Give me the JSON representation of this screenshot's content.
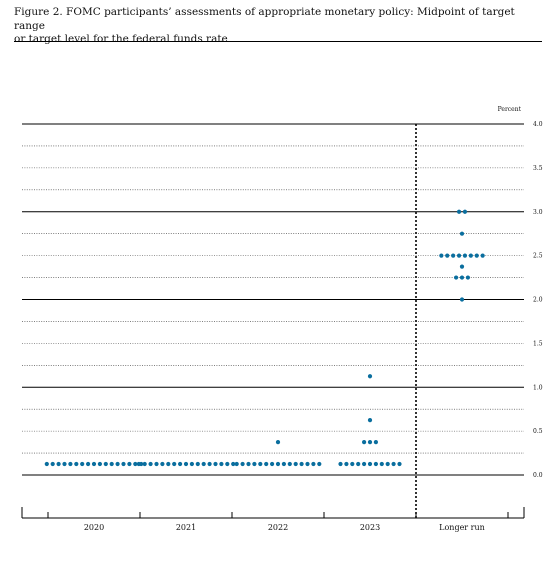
{
  "figure": {
    "caption_line1": "Figure 2.  FOMC participants’ assessments of appropriate monetary policy:  Midpoint of target range",
    "caption_line2": "or target level for the federal funds rate"
  },
  "chart_data": {
    "type": "scatter",
    "title": "",
    "ylabel": "Percent",
    "xlabel": "",
    "ylim": [
      0,
      4
    ],
    "yticks": [
      0.0,
      0.5,
      1.0,
      1.5,
      2.0,
      2.5,
      3.0,
      3.5,
      4.0
    ],
    "ytick_labels": [
      "0.0",
      "0.5",
      "1.0",
      "1.5",
      "2.0",
      "2.5",
      "3.0",
      "3.5",
      "4.0"
    ],
    "minor_step": 0.25,
    "grid": true,
    "categories": [
      "2020",
      "2021",
      "2022",
      "2023",
      "Longer run"
    ],
    "series": [
      {
        "values": [
          {
            "category": "2020",
            "y": 0.125,
            "count": 17
          }
        ]
      },
      {
        "values": [
          {
            "category": "2021",
            "y": 0.125,
            "count": 17
          }
        ]
      },
      {
        "values": [
          {
            "category": "2022",
            "y": 0.125,
            "count": 15
          },
          {
            "category": "2022",
            "y": 0.375,
            "count": 1
          }
        ]
      },
      {
        "values": [
          {
            "category": "2023",
            "y": 0.125,
            "count": 11
          },
          {
            "category": "2023",
            "y": 0.375,
            "count": 3
          },
          {
            "category": "2023",
            "y": 0.625,
            "count": 1
          },
          {
            "category": "2023",
            "y": 1.125,
            "count": 1
          }
        ]
      },
      {
        "values": [
          {
            "category": "Longer run",
            "y": 2.0,
            "count": 1
          },
          {
            "category": "Longer run",
            "y": 2.25,
            "count": 3
          },
          {
            "category": "Longer run",
            "y": 2.375,
            "count": 1
          },
          {
            "category": "Longer run",
            "y": 2.5,
            "count": 8
          },
          {
            "category": "Longer run",
            "y": 2.75,
            "count": 1
          },
          {
            "category": "Longer run",
            "y": 3.0,
            "count": 2
          }
        ]
      }
    ],
    "dot_color": "#0a6e9e"
  }
}
